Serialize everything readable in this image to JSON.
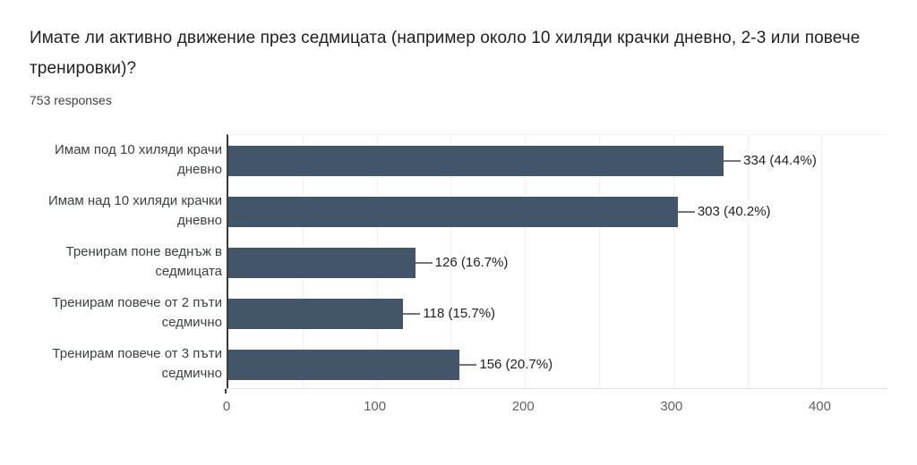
{
  "header": {
    "title": "Имате ли активно движение през седмицата (например около 10 хиляди крачки дневно, 2-3 или повече тренировки)?",
    "subtitle": "753 responses"
  },
  "chart_data": {
    "type": "bar",
    "orientation": "horizontal",
    "title": "Имате ли активно движение през седмицата (например около 10 хиляди крачки дневно, 2-3 или повече тренировки)?",
    "subtitle": "753 responses",
    "total_responses": 753,
    "categories": [
      "Имам под 10 хиляди крачи дневно",
      "Имам над 10 хиляди крачки дневно",
      "Тренирам поне веднъж в седмицата",
      "Тренирам повече от 2 пъти седмично",
      "Тренирам повече от 3 пъти седмично"
    ],
    "values": [
      334,
      303,
      126,
      118,
      156
    ],
    "value_labels": [
      "334 (44.4%)",
      "303 (40.2%)",
      "126 (16.7%)",
      "118 (15.7%)",
      "156 (20.7%)"
    ],
    "percentages": [
      44.4,
      40.2,
      16.7,
      15.7,
      20.7
    ],
    "xticks": [
      0,
      100,
      200,
      300,
      400
    ],
    "xlim": [
      0,
      445
    ],
    "grid_interval": 50,
    "grid": true,
    "legend": "none",
    "xlabel": "",
    "ylabel": "",
    "bar_color": "#435669",
    "axis_line_color": "#3a3a3a",
    "leader_line_color": "#757575"
  }
}
